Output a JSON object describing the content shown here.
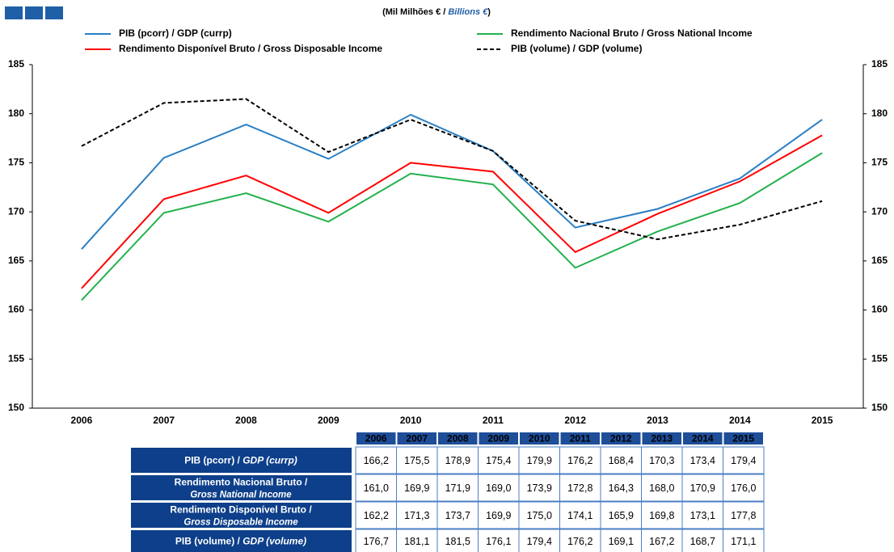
{
  "chart_data": {
    "type": "line",
    "title": [
      "(Mil Milhões € / ",
      "Billions €",
      ")"
    ],
    "categories": [
      "2006",
      "2007",
      "2008",
      "2009",
      "2010",
      "2011",
      "2012",
      "2013",
      "2014",
      "2015"
    ],
    "series": [
      {
        "name": "PIB (pcorr) / GDP (currp)",
        "color": "#2a7fc4",
        "dashed": false,
        "values": [
          166.2,
          175.5,
          178.9,
          175.4,
          179.9,
          176.2,
          168.4,
          170.3,
          173.4,
          179.4
        ],
        "value_labels": [
          "166,2",
          "175,5",
          "178,9",
          "175,4",
          "179,9",
          "176,2",
          "168,4",
          "170,3",
          "173,4",
          "179,4"
        ],
        "table_label": [
          "PIB (pcorr) / ",
          "GDP (currp)"
        ]
      },
      {
        "name": "Rendimento Nacional Bruto / Gross National Income",
        "color": "#22b14c",
        "dashed": false,
        "values": [
          161.0,
          169.9,
          171.9,
          169.0,
          173.9,
          172.8,
          164.3,
          168.0,
          170.9,
          176.0
        ],
        "value_labels": [
          "161,0",
          "169,9",
          "171,9",
          "169,0",
          "173,9",
          "172,8",
          "164,3",
          "168,0",
          "170,9",
          "176,0"
        ],
        "table_label": [
          "Rendimento Nacional Bruto /",
          "Gross National Income"
        ]
      },
      {
        "name": "Rendimento Disponível Bruto / Gross Disposable Income",
        "color": "#ff0000",
        "dashed": false,
        "values": [
          162.2,
          171.3,
          173.7,
          169.9,
          175.0,
          174.1,
          165.9,
          169.8,
          173.1,
          177.8
        ],
        "value_labels": [
          "162,2",
          "171,3",
          "173,7",
          "169,9",
          "175,0",
          "174,1",
          "165,9",
          "169,8",
          "173,1",
          "177,8"
        ],
        "table_label": [
          "Rendimento Disponível Bruto /",
          "Gross Disposable Income"
        ]
      },
      {
        "name": "PIB (volume) / GDP (volume)",
        "color": "#000000",
        "dashed": true,
        "values": [
          176.7,
          181.1,
          181.5,
          176.1,
          179.4,
          176.2,
          169.1,
          167.2,
          168.7,
          171.1
        ],
        "value_labels": [
          "176,7",
          "181,1",
          "181,5",
          "176,1",
          "179,4",
          "176,2",
          "169,1",
          "167,2",
          "168,7",
          "171,1"
        ],
        "table_label": [
          "PIB (volume) / ",
          "GDP (volume)"
        ]
      }
    ],
    "ylim": [
      150,
      185
    ],
    "yticks": [
      150,
      155,
      160,
      165,
      170,
      175,
      180,
      185
    ],
    "y2lim": [
      150,
      185
    ],
    "y2ticks": [
      150,
      155,
      160,
      165,
      170,
      175,
      180,
      185
    ],
    "grid": false
  }
}
